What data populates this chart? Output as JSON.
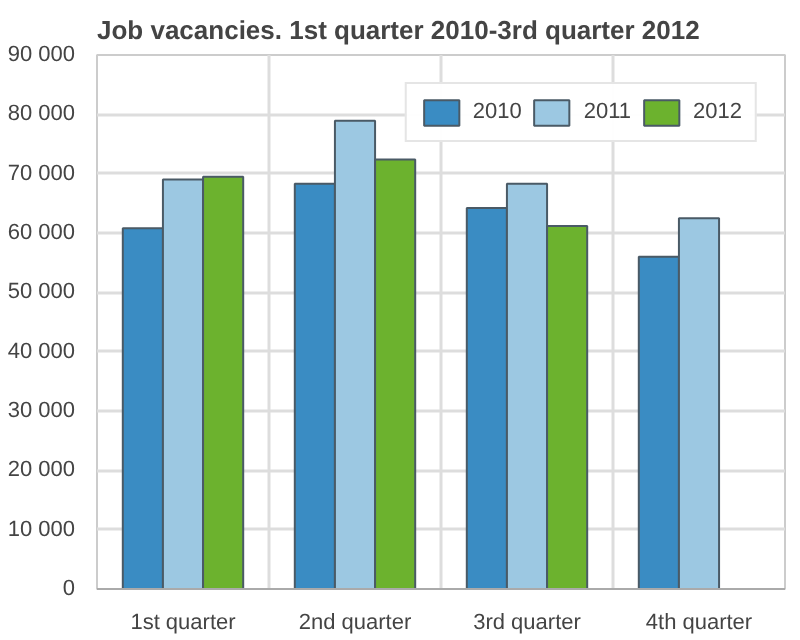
{
  "chart_data": {
    "type": "bar",
    "title": "Job vacancies. 1st quarter 2010-3rd quarter 2012",
    "categories": [
      "1st quarter",
      "2nd quarter",
      "3rd quarter",
      "4th quarter"
    ],
    "series": [
      {
        "name": "2010",
        "color": "#3a8cc3",
        "values": [
          60800,
          68300,
          64200,
          56000
        ]
      },
      {
        "name": "2011",
        "color": "#9cc8e2",
        "values": [
          69000,
          78900,
          68300,
          62500
        ]
      },
      {
        "name": "2012",
        "color": "#6cb22e",
        "values": [
          69500,
          72400,
          61200,
          null
        ]
      }
    ],
    "ylim": [
      0,
      90000
    ],
    "yticks": [
      {
        "value": 0,
        "label": "0"
      },
      {
        "value": 10000,
        "label": "10 000"
      },
      {
        "value": 20000,
        "label": "20 000"
      },
      {
        "value": 30000,
        "label": "30 000"
      },
      {
        "value": 40000,
        "label": "40 000"
      },
      {
        "value": 50000,
        "label": "50 000"
      },
      {
        "value": 60000,
        "label": "60 000"
      },
      {
        "value": 70000,
        "label": "70 000"
      },
      {
        "value": 80000,
        "label": "80 000"
      },
      {
        "value": 90000,
        "label": "90 000"
      }
    ],
    "grid": true,
    "legend": "top right"
  }
}
